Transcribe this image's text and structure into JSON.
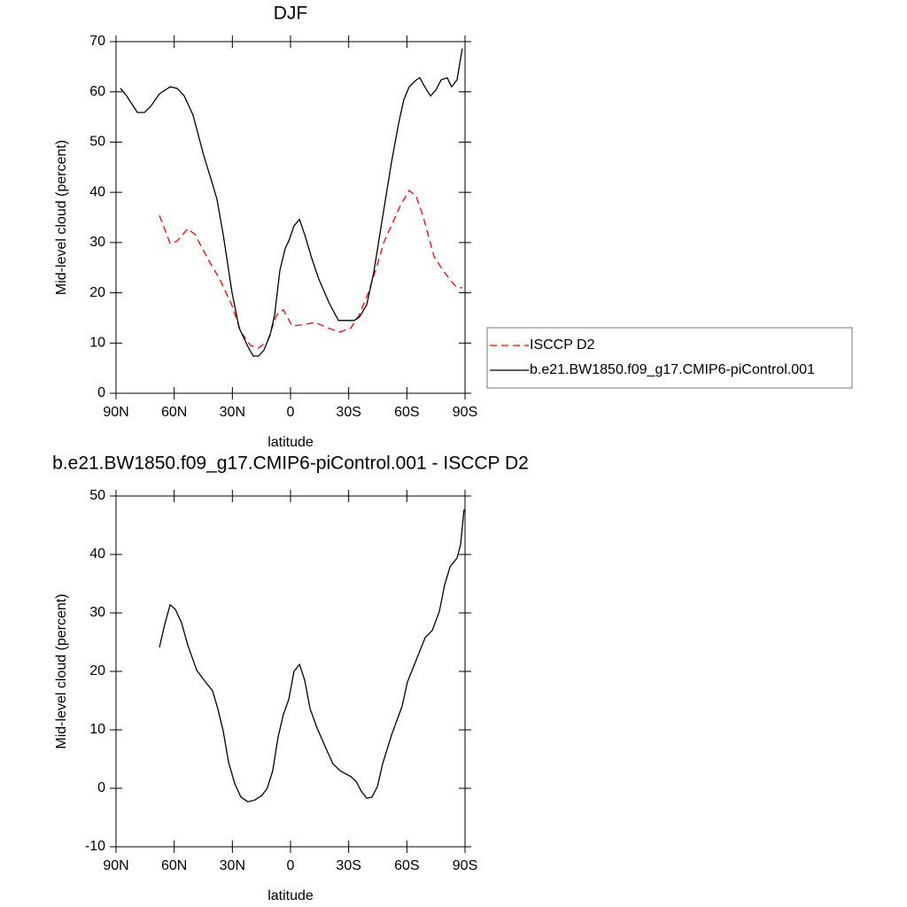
{
  "chart_data": [
    {
      "type": "line",
      "title": "DJF",
      "xlabel": "latitude",
      "ylabel": "Mid-level cloud (percent)",
      "xlim": [
        90,
        -90
      ],
      "xticks": [
        {
          "value": 90,
          "label": "90N"
        },
        {
          "value": 60,
          "label": "60N"
        },
        {
          "value": 30,
          "label": "30N"
        },
        0,
        {
          "value": -30,
          "label": "30S"
        },
        {
          "value": -60,
          "label": "60S"
        },
        {
          "value": -90,
          "label": "90S"
        }
      ],
      "ylim": [
        0,
        70
      ],
      "yticks": [
        0,
        10,
        20,
        30,
        40,
        50,
        60,
        70
      ],
      "legend_position": "right",
      "series": [
        {
          "name": "ISCCP D2",
          "color": "#ff0000",
          "line_style": "dashed",
          "x": [
            67.6,
            62.1,
            58.5,
            53.0,
            49.3,
            42.0,
            36.5,
            30.2,
            25.6,
            20.6,
            16.5,
            11.9,
            7.3,
            3.7,
            -0.8,
            -5.4,
            -12.8,
            -19.2,
            -25.6,
            -31.1,
            -35.6,
            -40.2,
            -43.9,
            -48.4,
            -53.0,
            -56.7,
            -61.2,
            -64.9,
            -68.5,
            -74.0,
            -78.6,
            -83.1,
            -85.9,
            -88.6
          ],
          "values": [
            35.4,
            29.8,
            30.3,
            32.8,
            31.6,
            26.3,
            22.7,
            17.5,
            12.2,
            9.5,
            9.0,
            10.4,
            15.5,
            16.6,
            13.4,
            13.6,
            14.1,
            13.0,
            12.2,
            13.0,
            15.7,
            20.1,
            24.5,
            30.3,
            34.2,
            37.4,
            40.4,
            39.1,
            35.1,
            27.2,
            24.5,
            22.2,
            21.0,
            21.0
          ]
        },
        {
          "name": "b.e21.BW1850.f09_g17.CMIP6-piControl.001",
          "color": "#000000",
          "line_style": "solid",
          "x": [
            87.7,
            84.5,
            79.0,
            75.4,
            72.2,
            67.6,
            62.1,
            58.5,
            54.8,
            50.3,
            44.8,
            40.2,
            37.9,
            34.7,
            30.2,
            26.5,
            21.9,
            19.2,
            16.5,
            13.7,
            10.5,
            8.2,
            5.5,
            2.7,
            0.9,
            -1.8,
            -4.6,
            -7.3,
            -11.0,
            -14.6,
            -20.1,
            -24.7,
            -28.3,
            -32.9,
            -35.6,
            -39.3,
            -42.9,
            -47.5,
            -52.1,
            -55.7,
            -58.5,
            -61.2,
            -64.9,
            -66.7,
            -68.5,
            -72.2,
            -74.9,
            -77.7,
            -80.8,
            -83.1,
            -85.9,
            -88.6
          ],
          "values": [
            60.7,
            59.2,
            55.9,
            55.9,
            57.1,
            59.6,
            61.0,
            60.7,
            59.2,
            55.4,
            47.4,
            41.6,
            38.6,
            31.6,
            20.1,
            13.0,
            9.2,
            7.4,
            7.4,
            8.6,
            11.6,
            15.7,
            24.5,
            28.9,
            30.3,
            33.3,
            34.6,
            31.6,
            26.8,
            22.7,
            17.8,
            14.5,
            14.5,
            14.5,
            15.2,
            17.6,
            24.0,
            35.1,
            46.0,
            53.6,
            58.5,
            61.0,
            62.4,
            62.8,
            61.5,
            59.2,
            60.3,
            62.4,
            62.8,
            61.0,
            62.4,
            68.6
          ]
        }
      ]
    },
    {
      "type": "line",
      "title": "b.e21.BW1850.f09_g17.CMIP6-piControl.001 - ISCCP D2",
      "xlabel": "latitude",
      "ylabel": "Mid-level cloud (percent)",
      "xlim": [
        90,
        -90
      ],
      "xticks": [
        {
          "value": 90,
          "label": "90N"
        },
        {
          "value": 60,
          "label": "60N"
        },
        {
          "value": 30,
          "label": "30N"
        },
        0,
        {
          "value": -30,
          "label": "30S"
        },
        {
          "value": -60,
          "label": "60S"
        },
        {
          "value": -90,
          "label": "90S"
        }
      ],
      "ylim": [
        -10,
        50
      ],
      "yticks": [
        -10,
        0,
        10,
        20,
        30,
        40,
        50
      ],
      "color": "#000000",
      "x": [
        67.6,
        64.9,
        62.1,
        59.4,
        56.2,
        53.0,
        48.4,
        43.9,
        40.2,
        37.5,
        34.7,
        32.0,
        28.8,
        25.6,
        22.0,
        18.3,
        14.7,
        12.0,
        9.2,
        6.4,
        3.7,
        0.9,
        -1.8,
        -4.6,
        -7.3,
        -10.1,
        -13.7,
        -18.3,
        -21.9,
        -25.6,
        -31.1,
        -33.8,
        -36.5,
        -39.3,
        -42.0,
        -44.8,
        -47.5,
        -52.1,
        -57.6,
        -60.3,
        -63.1,
        -66.7,
        -69.5,
        -73.1,
        -76.8,
        -79.5,
        -82.3,
        -85.9,
        -87.7,
        -89.5
      ],
      "values": [
        24.1,
        28.0,
        31.4,
        30.6,
        28.3,
        24.5,
        20.2,
        18.2,
        16.7,
        13.6,
        9.8,
        4.5,
        0.8,
        -1.5,
        -2.3,
        -2.0,
        -1.2,
        0.0,
        3.0,
        8.8,
        12.6,
        15.2,
        20.0,
        21.2,
        18.5,
        13.6,
        10.3,
        6.8,
        4.2,
        3.0,
        2.0,
        1.2,
        -0.5,
        -1.7,
        -1.5,
        0.3,
        4.2,
        9.1,
        14.1,
        18.2,
        20.5,
        23.5,
        25.8,
        27.0,
        30.3,
        34.8,
        37.9,
        39.4,
        41.7,
        47.7
      ]
    }
  ]
}
